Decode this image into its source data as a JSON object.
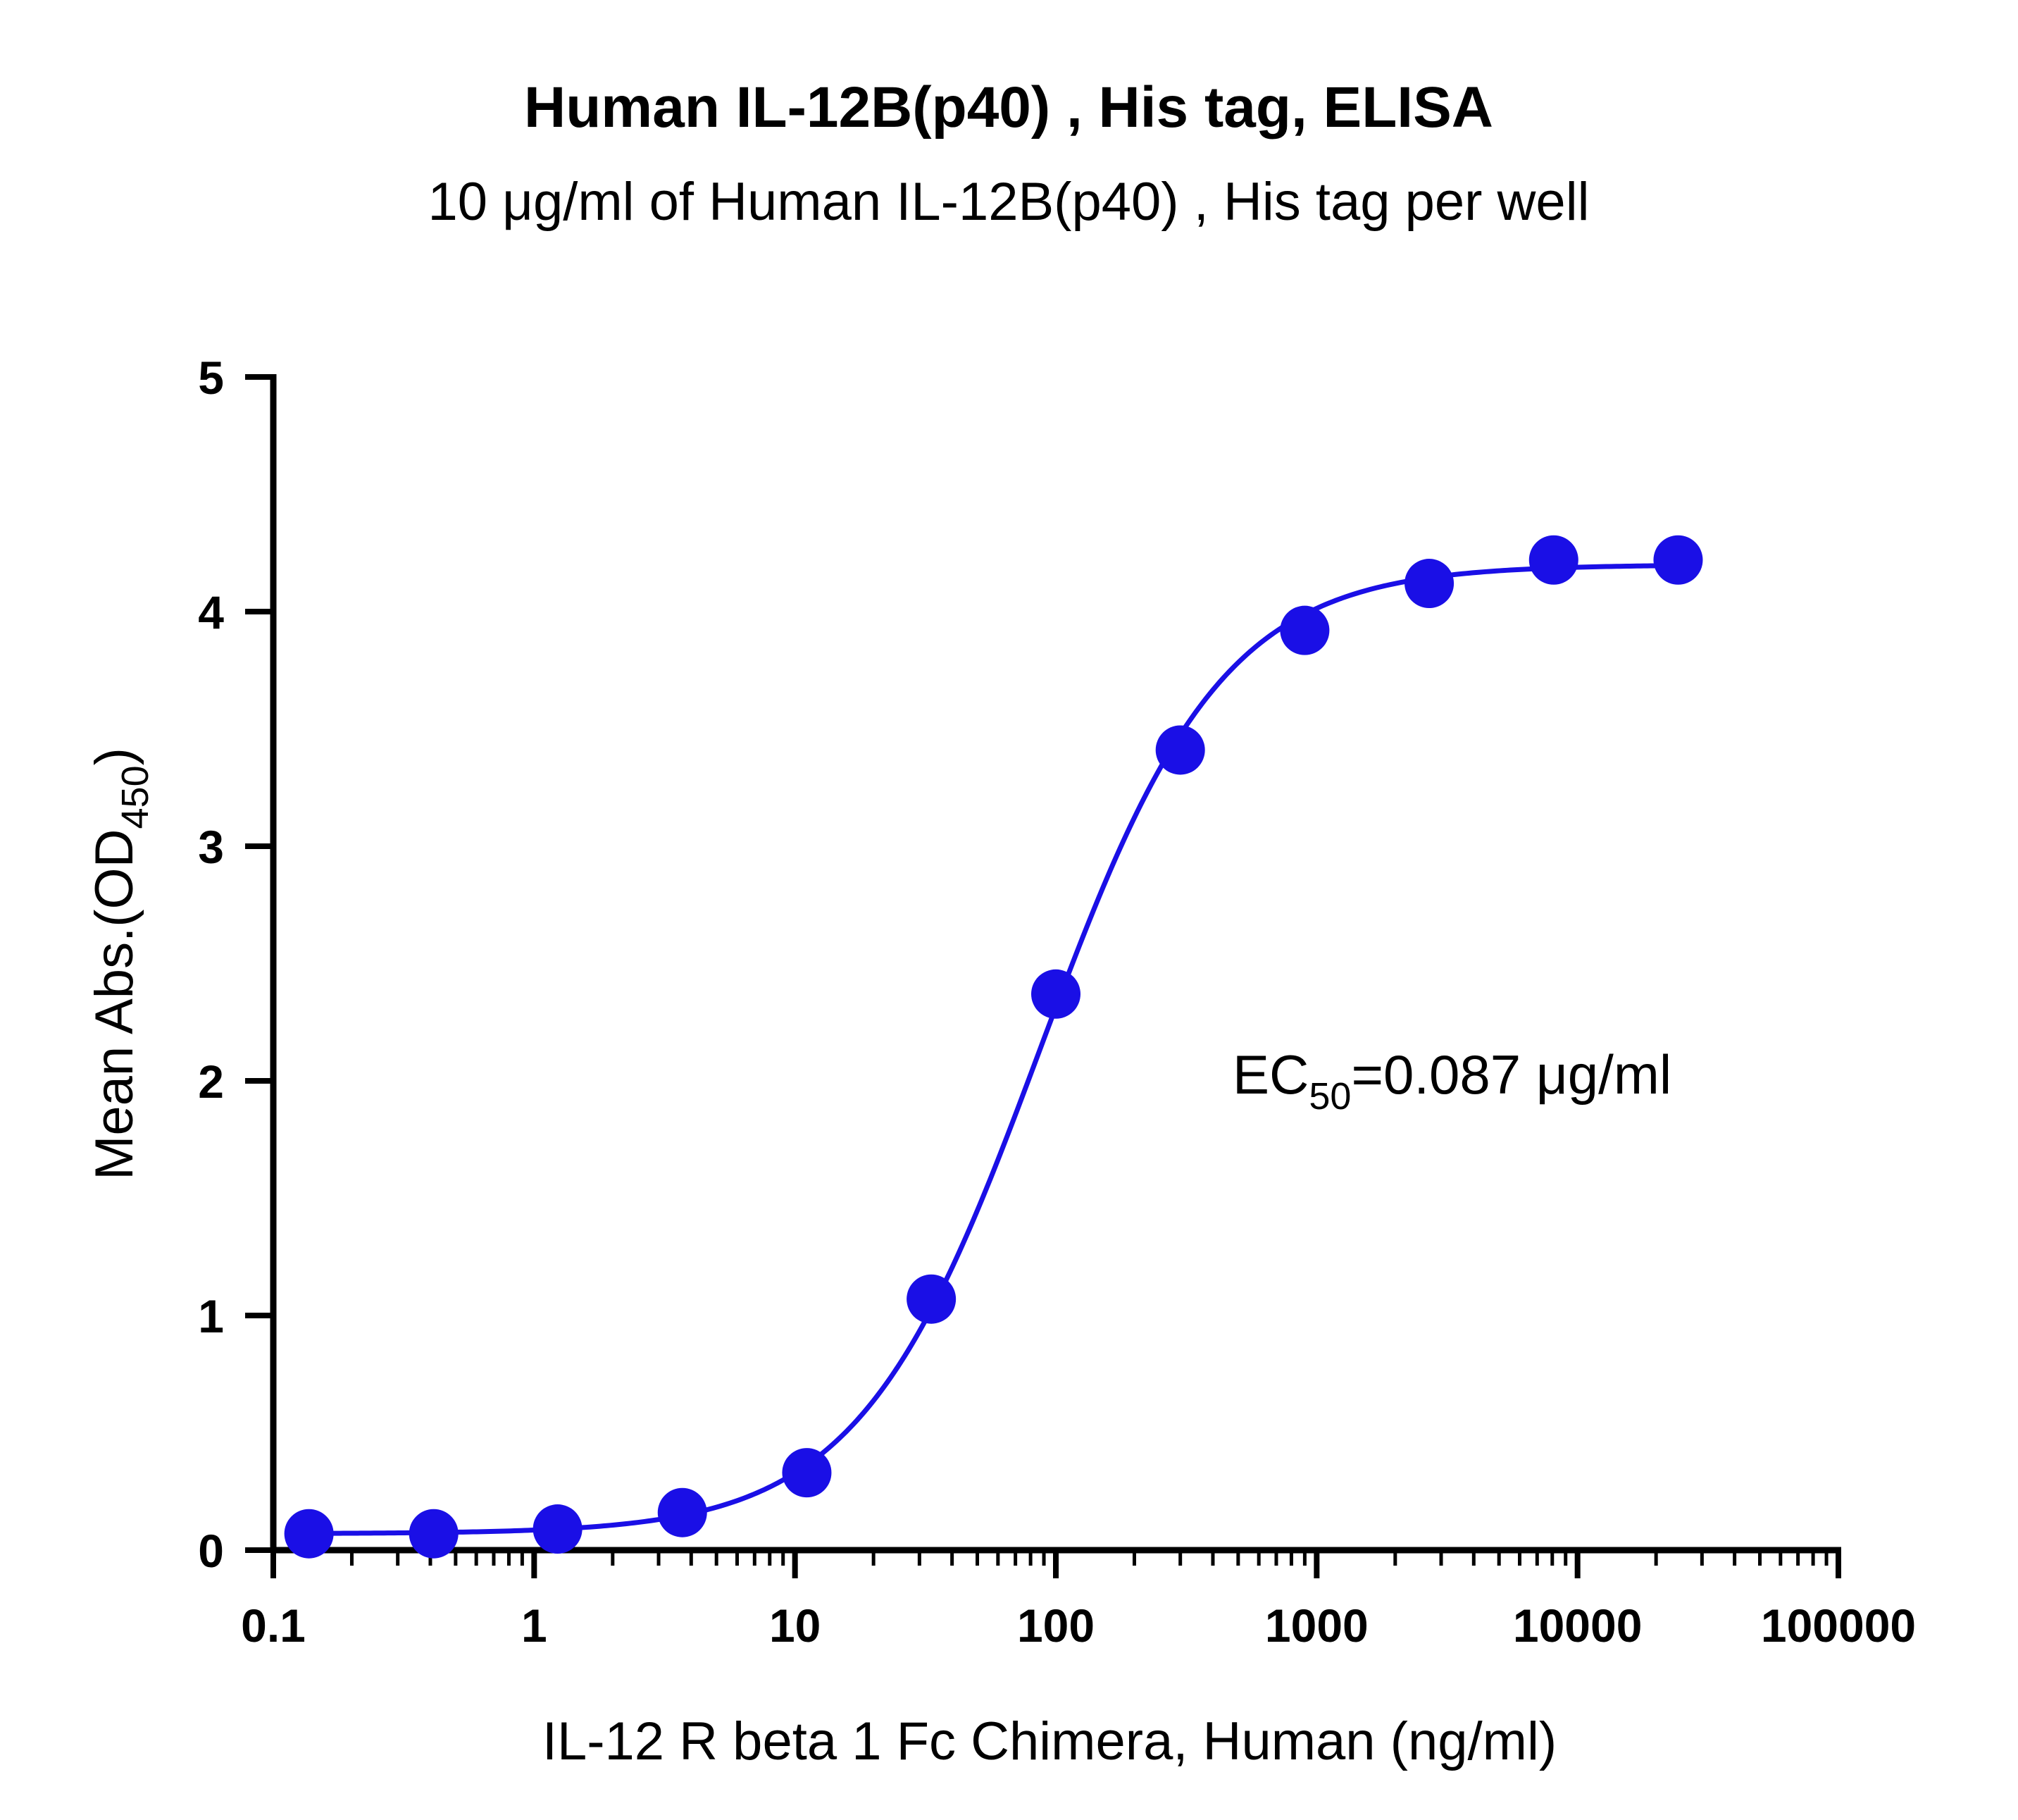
{
  "chart_data": {
    "type": "scatter",
    "title": "Human IL-12B(p40) , His tag, ELISA",
    "subtitle": "10 μg/ml of Human IL-12B(p40) , His tag per well",
    "xlabel": "IL-12 R beta 1 Fc Chimera, Human (ng/ml)",
    "ylabel": {
      "main": "Mean Abs.(OD",
      "subscript": "450",
      "suffix": ")"
    },
    "x_scale": "log",
    "xlim": [
      0.1,
      100000
    ],
    "ylim": [
      0,
      5
    ],
    "x_ticks": [
      {
        "value": 0.1,
        "label": "0.1"
      },
      {
        "value": 1,
        "label": "1"
      },
      {
        "value": 10,
        "label": "10"
      },
      {
        "value": 100,
        "label": "100"
      },
      {
        "value": 1000,
        "label": "1000"
      },
      {
        "value": 10000,
        "label": "10000"
      },
      {
        "value": 100000,
        "label": "100000"
      }
    ],
    "y_ticks": [
      {
        "value": 0,
        "label": "0"
      },
      {
        "value": 1,
        "label": "1"
      },
      {
        "value": 2,
        "label": "2"
      },
      {
        "value": 3,
        "label": "3"
      },
      {
        "value": 4,
        "label": "4"
      },
      {
        "value": 5,
        "label": "5"
      }
    ],
    "grid": false,
    "series": [
      {
        "color": "#1a0fe6",
        "x": [
          0.137,
          0.412,
          1.23,
          3.7,
          11.1,
          33.3,
          100,
          300,
          900,
          2700,
          8100,
          24300
        ],
        "y": [
          0.07,
          0.07,
          0.09,
          0.16,
          0.33,
          1.07,
          2.37,
          3.41,
          3.92,
          4.12,
          4.22,
          4.22
        ]
      }
    ],
    "fit_curve": {
      "type": "4PL",
      "bottom": 0.07,
      "top": 4.2,
      "ec50": 87,
      "hill": 1.25
    },
    "annotation": {
      "prefix": "EC",
      "subscript": "50",
      "suffix": "=0.087 μg/ml"
    }
  }
}
